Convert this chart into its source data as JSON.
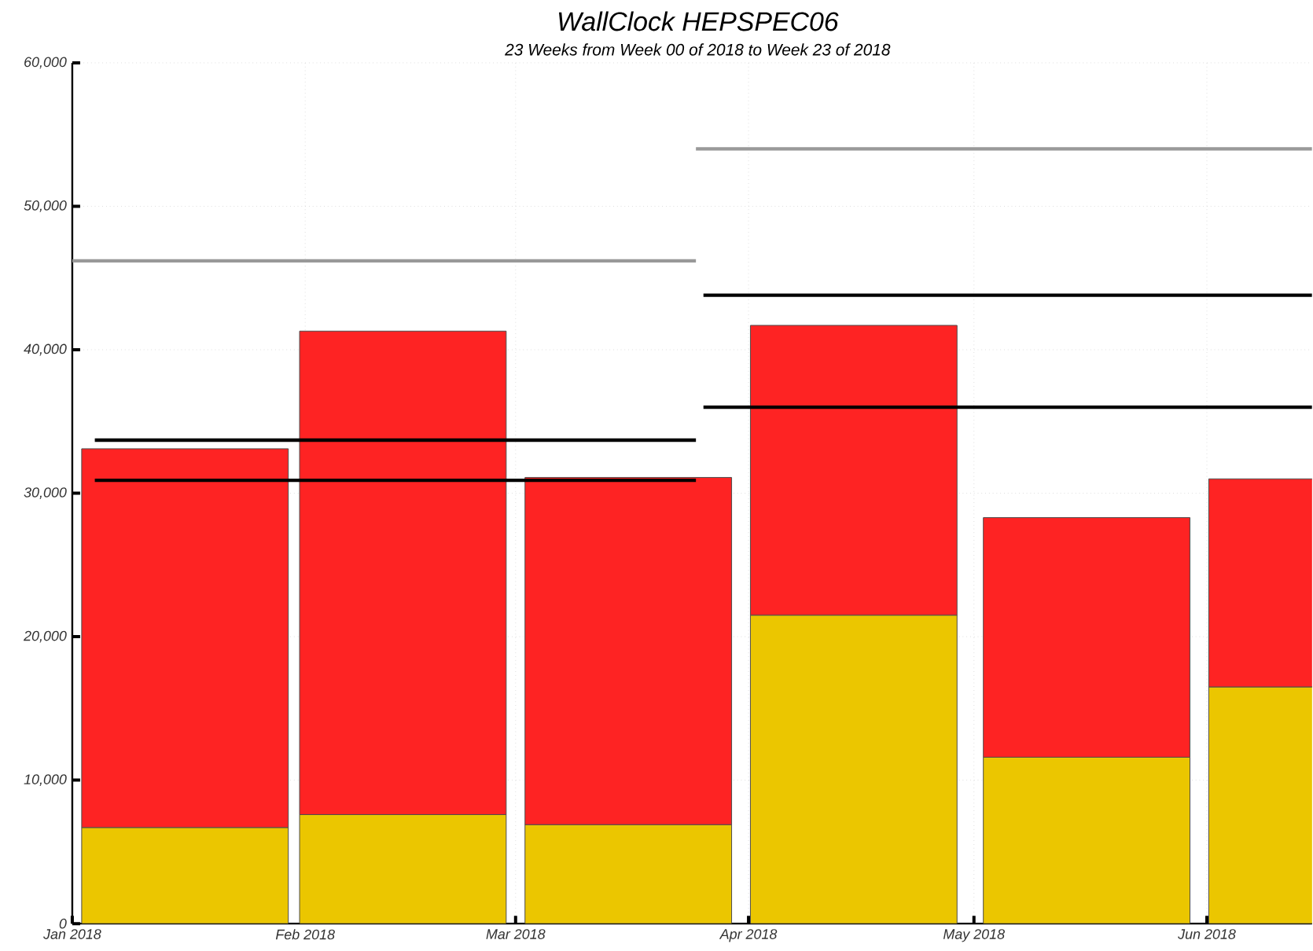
{
  "chart_data": {
    "type": "bar",
    "title": "WallClock HEPSPEC06",
    "subtitle": "23 Weeks from Week 00 of 2018 to Week 23 of 2018",
    "stacked": true,
    "grid": true,
    "x": [
      "2018-01-16",
      "2018-02-14",
      "2018-03-16",
      "2018-04-15",
      "2018-05-16",
      "2018-06-15"
    ],
    "xlim": [
      "2018-01-01",
      "2018-06-15"
    ],
    "xticks": [
      {
        "value": "2018-01",
        "label": "Jan 2018"
      },
      {
        "value": "2018-02",
        "label": "Feb 2018"
      },
      {
        "value": "2018-03",
        "label": "Mar 2018"
      },
      {
        "value": "2018-04",
        "label": "Apr 2018"
      },
      {
        "value": "2018-05",
        "label": "May 2018"
      },
      {
        "value": "2018-06",
        "label": "Jun 2018"
      }
    ],
    "ylim": [
      0,
      60000
    ],
    "yticks": [
      0,
      {
        "value": 10000,
        "label": "10,000"
      },
      {
        "value": 20000,
        "label": "20,000"
      },
      {
        "value": 30000,
        "label": "30,000"
      },
      {
        "value": 40000,
        "label": "40,000"
      },
      {
        "value": 50000,
        "label": "50,000"
      },
      {
        "value": 60000,
        "label": "60,000"
      }
    ],
    "series": [
      {
        "color": "#ebc600",
        "values": [
          6700,
          7600,
          6900,
          21500,
          11600,
          16500
        ]
      },
      {
        "color": "#fe2323",
        "values": [
          26400,
          33700,
          24200,
          20200,
          16700,
          14500
        ]
      },
      {
        "type": "line",
        "color": "#999999",
        "x": [
          "2018-01-01",
          "2018-03-25"
        ],
        "values": [
          46200,
          46200
        ]
      },
      {
        "type": "line",
        "color": "#999999",
        "x": [
          "2018-03-25",
          "2018-06-15"
        ],
        "values": [
          54000,
          54000
        ]
      },
      {
        "type": "line",
        "color": "#000000",
        "x": [
          "2018-01-04",
          "2018-03-25"
        ],
        "values": [
          33700,
          33700
        ]
      },
      {
        "type": "line",
        "color": "#000000",
        "x": [
          "2018-01-04",
          "2018-03-25"
        ],
        "values": [
          30900,
          30900
        ]
      },
      {
        "type": "line",
        "color": "#000000",
        "x": [
          "2018-03-26",
          "2018-06-15"
        ],
        "values": [
          43800,
          43800
        ]
      },
      {
        "type": "line",
        "color": "#000000",
        "x": [
          "2018-03-26",
          "2018-06-15"
        ],
        "values": [
          36000,
          36000
        ]
      }
    ]
  }
}
